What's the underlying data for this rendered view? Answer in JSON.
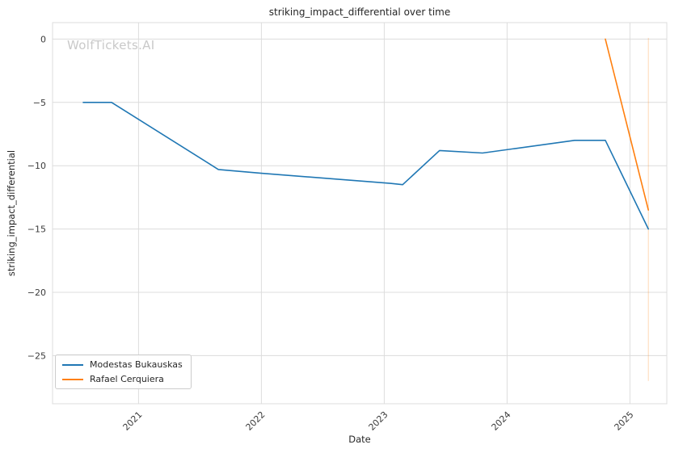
{
  "title": "striking_impact_differential over time",
  "watermark": "WolfTickets.AI",
  "colors": {
    "grid": "#dcdcdc",
    "plot_bg": "#ffffff",
    "text": "#262626",
    "tick_text": "#3b3b3b",
    "watermark": "#c9c9c9",
    "series_blue": "#1f77b4",
    "series_orange": "#ff7f0e"
  },
  "legend": {
    "position": "lower left",
    "items": [
      {
        "label": "Modestas Bukauskas"
      },
      {
        "label": "Rafael Cerquiera"
      }
    ]
  },
  "chart_data": {
    "type": "line",
    "title": "striking_impact_differential over time",
    "xlabel": "Date",
    "ylabel": "striking_impact_differential",
    "xlim": [
      2020.3,
      2025.3
    ],
    "ylim": [
      -28.8,
      1.3
    ],
    "grid": true,
    "xticks": [
      {
        "value": 2021,
        "label": "2021"
      },
      {
        "value": 2022,
        "label": "2022"
      },
      {
        "value": 2023,
        "label": "2023"
      },
      {
        "value": 2024,
        "label": "2024"
      },
      {
        "value": 2025,
        "label": "2025"
      }
    ],
    "yticks": [
      {
        "value": 0,
        "label": "0"
      },
      {
        "value": -5,
        "label": "−5"
      },
      {
        "value": -10,
        "label": "−10"
      },
      {
        "value": -15,
        "label": "−15"
      },
      {
        "value": -20,
        "label": "−20"
      },
      {
        "value": -25,
        "label": "−25"
      }
    ],
    "series": [
      {
        "name": "Modestas Bukauskas",
        "color": "#1f77b4",
        "points": [
          [
            2020.55,
            -5.0
          ],
          [
            2020.78,
            -5.0
          ],
          [
            2021.65,
            -10.3
          ],
          [
            2022.0,
            -10.6
          ],
          [
            2023.05,
            -11.4
          ],
          [
            2023.15,
            -11.5
          ],
          [
            2023.45,
            -8.8
          ],
          [
            2023.8,
            -9.0
          ],
          [
            2024.55,
            -8.0
          ],
          [
            2024.8,
            -8.0
          ],
          [
            2025.15,
            -15.0
          ]
        ]
      },
      {
        "name": "Rafael Cerquiera",
        "color": "#ff7f0e",
        "points": [
          [
            2024.8,
            0.0
          ],
          [
            2025.15,
            -13.5
          ]
        ]
      }
    ],
    "annotations": {
      "vline": {
        "x": 2025.15,
        "color": "#ff7f0e",
        "opacity": 0.3,
        "y_from": 0.1,
        "y_to": -27.0
      }
    }
  }
}
